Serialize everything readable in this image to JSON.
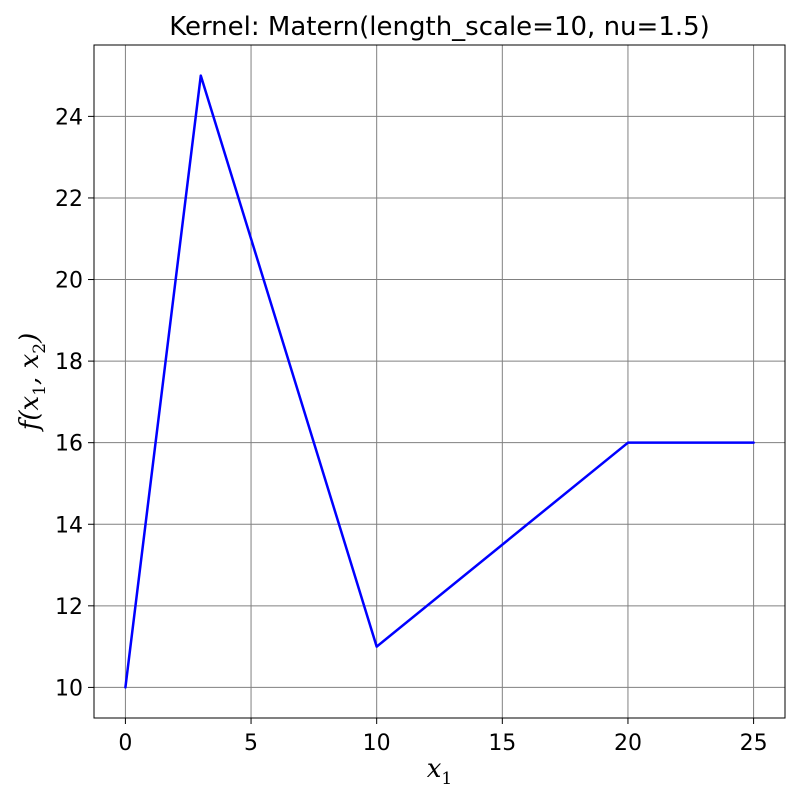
{
  "chart_data": {
    "type": "line",
    "title": "Kernel: Matern(length_scale=10, nu=1.5)",
    "xlabel": {
      "base": "x",
      "sub": "1"
    },
    "ylabel": {
      "pre": "f(",
      "v1": "x",
      "s1": "1",
      "sep": ", ",
      "v2": "x",
      "s2": "2",
      "post": ")"
    },
    "xlim": [
      -1.25,
      26.25
    ],
    "ylim": [
      9.25,
      25.75
    ],
    "xticks": [
      0,
      5,
      10,
      15,
      20,
      25
    ],
    "yticks": [
      10,
      12,
      14,
      16,
      18,
      20,
      22,
      24
    ],
    "grid": true,
    "series": [
      {
        "color": "#0000ff",
        "x": [
          0,
          3,
          10,
          20,
          25
        ],
        "y": [
          10,
          25,
          11,
          16,
          16
        ]
      }
    ]
  }
}
